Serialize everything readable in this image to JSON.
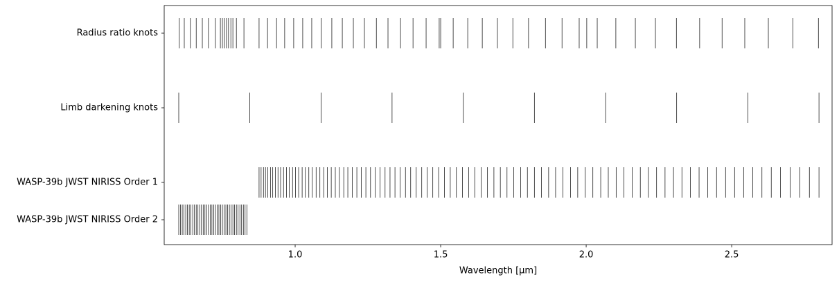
{
  "chart_data": {
    "type": "eventplot",
    "xlabel": "Wavelength [μm]",
    "xlim": [
      0.55,
      2.845
    ],
    "xticks": [
      {
        "value": 1,
        "label": "1.0"
      },
      {
        "value": 1.5,
        "label": "1.5"
      },
      {
        "value": 2,
        "label": "2.0"
      },
      {
        "value": 2.5,
        "label": "2.5"
      }
    ],
    "series": [
      {
        "name": "Radius ratio knots",
        "color": "#000000",
        "values": [
          0.602,
          0.619,
          0.64,
          0.66,
          0.681,
          0.702,
          0.726,
          0.743,
          0.75,
          0.757,
          0.764,
          0.771,
          0.779,
          0.786,
          0.798,
          0.824,
          0.876,
          0.905,
          0.936,
          0.964,
          0.995,
          1.026,
          1.057,
          1.09,
          1.126,
          1.162,
          1.2,
          1.238,
          1.279,
          1.319,
          1.362,
          1.405,
          1.45,
          1.495,
          1.5,
          1.543,
          1.593,
          1.643,
          1.695,
          1.748,
          1.802,
          1.86,
          1.917,
          1.976,
          2.002,
          2.038,
          2.102,
          2.169,
          2.238,
          2.31,
          2.39,
          2.467,
          2.545,
          2.626,
          2.71,
          2.798
        ]
      },
      {
        "name": "Limb darkening knots",
        "color": "#000000",
        "values": [
          0.6,
          0.844,
          1.089,
          1.333,
          1.578,
          1.822,
          2.067,
          2.311,
          2.556,
          2.8
        ]
      },
      {
        "name": "WASP-39b JWST NIRISS Order 1",
        "color": "#000000",
        "values": [
          0.876,
          0.883,
          0.891,
          0.898,
          0.906,
          0.915,
          0.923,
          0.932,
          0.941,
          0.95,
          0.96,
          0.97,
          0.98,
          0.991,
          1.001,
          1.012,
          1.024,
          1.035,
          1.047,
          1.059,
          1.072,
          1.085,
          1.098,
          1.111,
          1.124,
          1.138,
          1.152,
          1.167,
          1.181,
          1.196,
          1.212,
          1.227,
          1.243,
          1.259,
          1.275,
          1.292,
          1.309,
          1.326,
          1.343,
          1.361,
          1.379,
          1.397,
          1.416,
          1.435,
          1.454,
          1.473,
          1.493,
          1.513,
          1.533,
          1.554,
          1.575,
          1.596,
          1.617,
          1.639,
          1.661,
          1.683,
          1.705,
          1.728,
          1.751,
          1.775,
          1.798,
          1.822,
          1.846,
          1.871,
          1.895,
          1.92,
          1.946,
          1.971,
          1.997,
          2.023,
          2.05,
          2.076,
          2.103,
          2.13,
          2.158,
          2.186,
          2.214,
          2.242,
          2.271,
          2.3,
          2.329,
          2.358,
          2.388,
          2.418,
          2.448,
          2.479,
          2.51,
          2.541,
          2.572,
          2.604,
          2.636,
          2.668,
          2.701,
          2.734,
          2.767,
          2.8
        ]
      },
      {
        "name": "WASP-39b JWST NIRISS Order 2",
        "color": "#000000",
        "values": [
          0.6,
          0.606,
          0.612,
          0.618,
          0.624,
          0.63,
          0.636,
          0.642,
          0.648,
          0.654,
          0.66,
          0.666,
          0.672,
          0.678,
          0.684,
          0.69,
          0.696,
          0.702,
          0.708,
          0.714,
          0.72,
          0.726,
          0.732,
          0.738,
          0.744,
          0.75,
          0.756,
          0.762,
          0.768,
          0.774,
          0.78,
          0.786,
          0.792,
          0.798,
          0.804,
          0.81,
          0.816,
          0.822,
          0.828,
          0.834
        ]
      }
    ]
  }
}
